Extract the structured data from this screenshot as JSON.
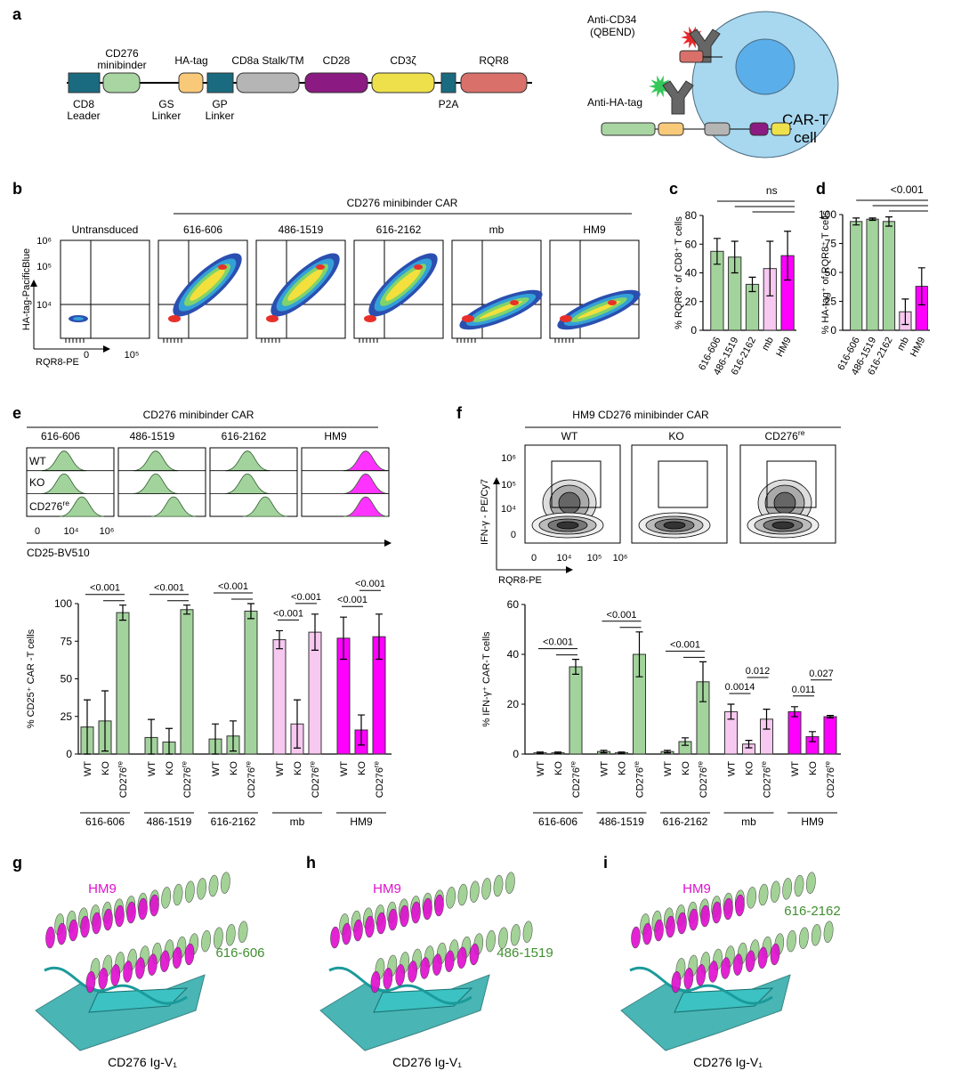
{
  "panels": [
    "a",
    "b",
    "c",
    "d",
    "e",
    "f",
    "g",
    "h",
    "i"
  ],
  "construct_labels": [
    [
      "CD8",
      "Leader"
    ],
    [
      "CD276",
      "minibinder"
    ],
    [
      "GS",
      "Linker"
    ],
    [
      "HA-tag"
    ],
    [
      "GP",
      "Linker"
    ],
    [
      "CD8a Stalk/TM"
    ],
    [
      "CD28"
    ],
    [
      "CD3ζ"
    ],
    [
      "P2A"
    ],
    [
      "RQR8"
    ]
  ],
  "cell": {
    "antibody_labels": [
      [
        "Anti-CD34",
        "(QBEND)"
      ],
      [
        "Anti-HA-tag"
      ]
    ],
    "cell_label": [
      "CAR-T",
      "cell"
    ]
  },
  "flow_b": {
    "header": "CD276 minibinder CAR",
    "plots": [
      "Untransduced",
      "616-606",
      "486-1519",
      "616-2162",
      "mb",
      "HM9"
    ],
    "y_label": "HA-tag-PacificBlue",
    "x_label": "RQR8-PE",
    "y_ticks": [
      "10⁶",
      "10⁵",
      "10⁴"
    ],
    "x_ticks": [
      "0",
      "10⁵"
    ]
  },
  "hist_e": {
    "header": "CD276 minibinder CAR",
    "columns": [
      "616-606",
      "486-1519",
      "616-2162",
      "HM9"
    ],
    "rows": [
      {
        "text": "WT"
      },
      {
        "text": "KO"
      },
      {
        "text": "CD276",
        "sup": "re"
      }
    ],
    "x_ticks": [
      "0",
      "10⁴",
      "10⁶"
    ],
    "x_label": "CD25-BV510"
  },
  "contour_f": {
    "header": "HM9 CD276 minibinder CAR",
    "columns": [
      {
        "text": "WT"
      },
      {
        "text": "KO"
      },
      {
        "text": "CD276",
        "sup": "re"
      }
    ],
    "y_label": "IFN-γ - PE/Cy7",
    "y_ticks": [
      "10⁶",
      "10⁵",
      "10⁴",
      "0"
    ],
    "x_ticks": [
      "0",
      "10⁴",
      "10⁵",
      "10⁶"
    ],
    "x_label": "RQR8-PE"
  },
  "structures": [
    {
      "binder_label": "HM9",
      "partner_label": "616-606",
      "target_label": "CD276 Ig-V₁"
    },
    {
      "binder_label": "HM9",
      "partner_label": "486-1519",
      "target_label": "CD276 Ig-V₁"
    },
    {
      "binder_label": "HM9",
      "partner_label": "616-2162",
      "target_label": "CD276 Ig-V₁"
    }
  ],
  "chart_data": [
    {
      "type": "bar",
      "y_label": "% RQR8⁺ of CD8⁺ T cells",
      "categories": [
        "616-606",
        "486-1519",
        "616-2162",
        "mb",
        "HM9"
      ],
      "values": [
        55,
        51,
        32,
        43,
        52
      ],
      "errors": [
        9,
        11,
        5,
        19,
        17
      ],
      "colors": [
        "#a3d39c",
        "#a3d39c",
        "#a3d39c",
        "#f7c8f0",
        "#ff00ff"
      ],
      "ylim": [
        0,
        80
      ],
      "yticks": [
        0,
        20,
        40,
        60,
        80
      ],
      "annotation": "ns"
    },
    {
      "type": "bar",
      "y_label": "% HA-tag⁺ of RQR8⁺ T cells",
      "categories": [
        "616-606",
        "486-1519",
        "616-2162",
        "mb",
        "HM9"
      ],
      "values": [
        94,
        96,
        94,
        16,
        38
      ],
      "errors": [
        3,
        1,
        4,
        11,
        16
      ],
      "colors": [
        "#a3d39c",
        "#a3d39c",
        "#a3d39c",
        "#f7c8f0",
        "#ff00ff"
      ],
      "ylim": [
        0,
        100
      ],
      "yticks": [
        0,
        25,
        50,
        75,
        100
      ],
      "annotation": "<0.001"
    },
    {
      "type": "grouped_bar",
      "y_label": "% CD25⁺ CAR -T cells",
      "members": [
        {
          "text": "WT"
        },
        {
          "text": "KO"
        },
        {
          "text": "CD276",
          "sup": "re"
        }
      ],
      "ylim": [
        0,
        100
      ],
      "yticks": [
        0,
        25,
        50,
        75,
        100
      ],
      "series": [
        {
          "name": "616-606",
          "color": "#a3d39c",
          "values": [
            18,
            22,
            94
          ],
          "errors": [
            18,
            20,
            5
          ],
          "annotations": [
            "<0.001"
          ]
        },
        {
          "name": "486-1519",
          "color": "#a3d39c",
          "values": [
            11,
            8,
            96
          ],
          "errors": [
            12,
            9,
            3
          ],
          "annotations": [
            "<0.001"
          ]
        },
        {
          "name": "616-2162",
          "color": "#a3d39c",
          "values": [
            10,
            12,
            95
          ],
          "errors": [
            10,
            10,
            5
          ],
          "annotations": [
            "<0.001"
          ]
        },
        {
          "name": "mb",
          "color": "#f7c8f0",
          "values": [
            76,
            20,
            81
          ],
          "errors": [
            6,
            16,
            12
          ],
          "annotations": [
            "<0.001",
            "<0.001"
          ]
        },
        {
          "name": "HM9",
          "color": "#ff00ff",
          "values": [
            77,
            16,
            78
          ],
          "errors": [
            14,
            10,
            15
          ],
          "annotations": [
            "<0.001",
            "<0.001"
          ]
        }
      ]
    },
    {
      "type": "grouped_bar",
      "y_label": "% IFN-γ⁺ CAR-T cells",
      "members": [
        {
          "text": "WT"
        },
        {
          "text": "KO"
        },
        {
          "text": "CD276",
          "sup": "re"
        }
      ],
      "ylim": [
        0,
        60
      ],
      "yticks": [
        0,
        20,
        40,
        60
      ],
      "series": [
        {
          "name": "616-606",
          "color": "#a3d39c",
          "values": [
            0.5,
            0.5,
            35
          ],
          "errors": [
            0.3,
            0.3,
            3
          ],
          "annotations": [
            "<0.001"
          ]
        },
        {
          "name": "486-1519",
          "color": "#a3d39c",
          "values": [
            1,
            0.5,
            40
          ],
          "errors": [
            0.5,
            0.3,
            9
          ],
          "annotations": [
            "<0.001"
          ]
        },
        {
          "name": "616-2162",
          "color": "#a3d39c",
          "values": [
            1,
            5,
            29
          ],
          "errors": [
            0.5,
            1.5,
            8
          ],
          "annotations": [
            "<0.001"
          ]
        },
        {
          "name": "mb",
          "color": "#f7c8f0",
          "values": [
            17,
            4,
            14
          ],
          "errors": [
            3,
            1.5,
            4
          ],
          "annotations": [
            "0.0014",
            "0.012"
          ]
        },
        {
          "name": "HM9",
          "color": "#ff00ff",
          "values": [
            17,
            7,
            15
          ],
          "errors": [
            2,
            2,
            0.5
          ],
          "annotations": [
            "0.011",
            "0.027"
          ]
        }
      ]
    }
  ]
}
